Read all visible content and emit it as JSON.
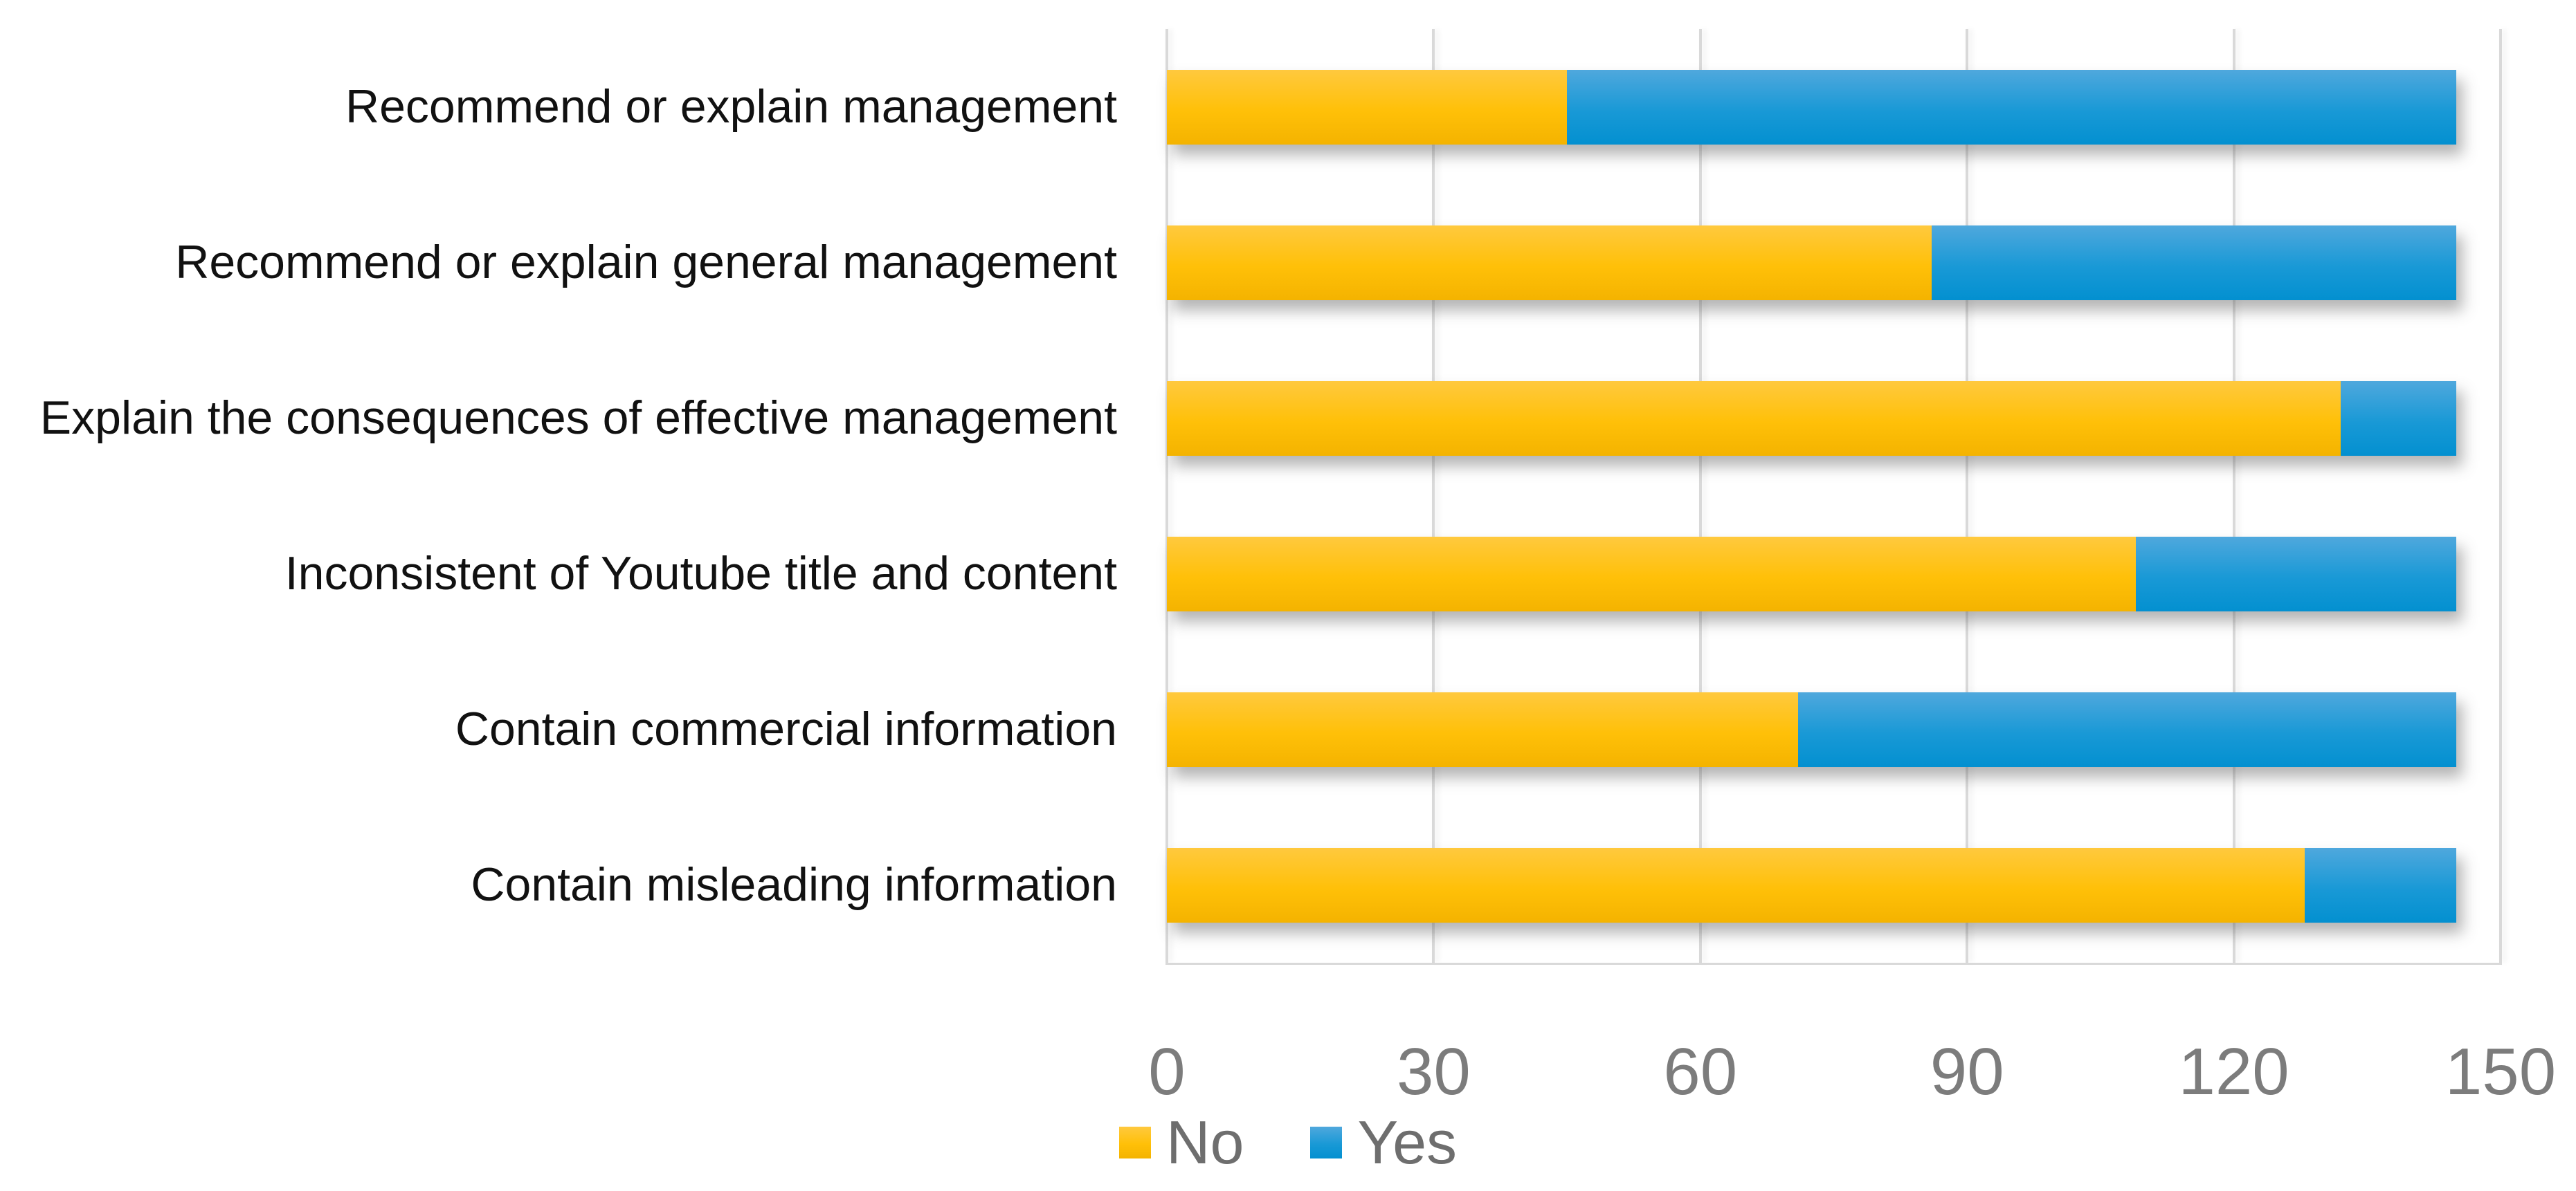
{
  "chart_data": {
    "type": "bar",
    "orientation": "horizontal",
    "stacked": true,
    "title": "",
    "xlabel": "",
    "ylabel": "",
    "grid": true,
    "categories": [
      "Recommend or explain management",
      "Recommend or explain general management",
      "Explain the consequences of effective management",
      "Inconsistent of Youtube title and content",
      "Contain commercial information",
      "Contain misleading information"
    ],
    "series": [
      {
        "name": "No",
        "values": [
          45,
          86,
          132,
          109,
          71,
          128
        ],
        "color": "#FFC008",
        "color_top": "#FFC93E",
        "color_bottom": "#F4B300"
      },
      {
        "name": "Yes",
        "values": [
          100,
          59,
          13,
          36,
          74,
          17
        ],
        "color": "#1999D6",
        "color_top": "#4FA8DD",
        "color_bottom": "#0390D0"
      }
    ],
    "x_axis": {
      "min": 0,
      "max": 150,
      "tick_step": 30,
      "ticks": [
        "0",
        "30",
        "60",
        "90",
        "120",
        "150"
      ]
    },
    "legend": {
      "position": "bottom",
      "entries": [
        "No",
        "Yes"
      ]
    }
  },
  "styles": {
    "background": "#FFFFFF",
    "grid_color": "#D9D9D9",
    "baseline_color": "#D9D9D9",
    "tick_color": "#7C7C7C",
    "category_label_color": "#111111",
    "legend_text_color": "#6E6E6E"
  }
}
